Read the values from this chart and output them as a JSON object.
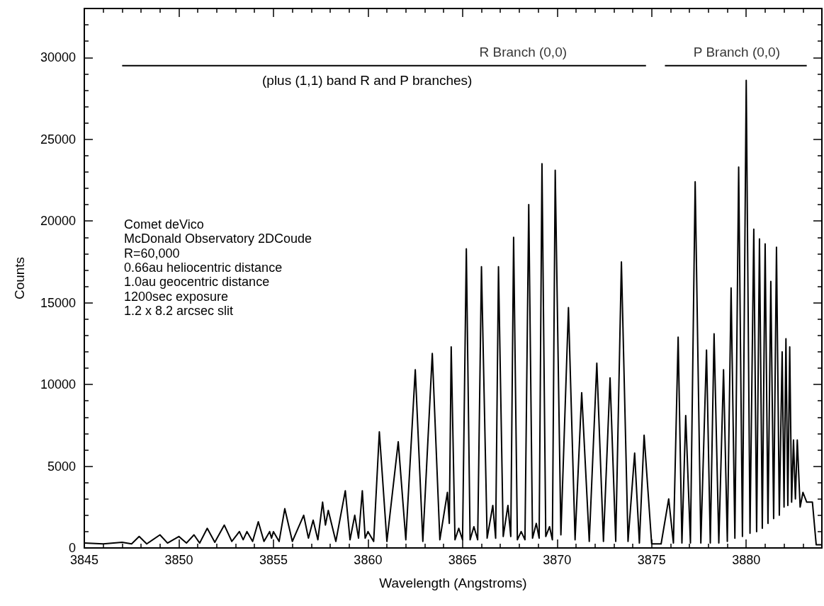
{
  "chart_data": {
    "type": "line",
    "xlabel": "Wavelength (Angstroms)",
    "ylabel": "Counts",
    "xlim": [
      3845,
      3884
    ],
    "xticks": [
      3845,
      3850,
      3855,
      3860,
      3865,
      3870,
      3875,
      3880
    ],
    "ylim": [
      0,
      33000
    ],
    "yticks": [
      0,
      5000,
      10000,
      15000,
      20000,
      25000,
      30000
    ],
    "grid": false,
    "marker": "none",
    "line_style": "solid",
    "annotations": [
      {
        "text": "R Branch (0,0)",
        "x": 3868.2,
        "y": 29500
      },
      {
        "text": "P Branch (0,0)",
        "x": 3879.5,
        "y": 29500
      },
      "(plus (1,1) band R and P branches)",
      "Comet deVico",
      "McDonald Observatory 2DCoude",
      "R=60,000",
      "0.66au heliocentric distance",
      "1.0au geocentric distance",
      "1200sec exposure",
      "1.2 x 8.2 arcsec slit"
    ],
    "series": [
      {
        "color": "#000000",
        "x": [
          3847,
          3874.7
        ],
        "values": [
          29500,
          29500
        ]
      },
      {
        "color": "#000000",
        "x": [
          3875.7,
          3883.2
        ],
        "values": [
          29500,
          29500
        ]
      },
      {
        "color": "#000000",
        "x": [
          3845.0,
          3846.0,
          3847.0,
          3847.5,
          3847.9,
          3848.3,
          3849.0,
          3849.4,
          3850.0,
          3850.4,
          3850.8,
          3851.1,
          3851.5,
          3851.9,
          3852.4,
          3852.8,
          3853.2,
          3853.4,
          3853.6,
          3853.9,
          3854.2,
          3854.5,
          3854.8,
          3854.9,
          3855.0,
          3855.3,
          3855.6,
          3856.0,
          3856.6,
          3856.85,
          3857.1,
          3857.35,
          3857.6,
          3857.75,
          3857.9,
          3858.3,
          3858.8,
          3859.05,
          3859.3,
          3859.5,
          3859.7,
          3859.85,
          3860.0,
          3860.3,
          3860.6,
          3861.0,
          3861.6,
          3862.0,
          3862.5,
          3862.9,
          3863.4,
          3863.8,
          3864.2,
          3864.3,
          3864.4,
          3864.6,
          3864.8,
          3865.0,
          3865.2,
          3865.4,
          3865.6,
          3865.8,
          3866.0,
          3866.3,
          3866.6,
          3866.75,
          3866.9,
          3867.15,
          3867.4,
          3867.55,
          3867.7,
          3867.9,
          3868.1,
          3868.3,
          3868.5,
          3868.7,
          3868.9,
          3869.05,
          3869.2,
          3869.4,
          3869.6,
          3869.75,
          3869.9,
          3870.2,
          3870.6,
          3870.95,
          3871.3,
          3871.7,
          3872.1,
          3872.45,
          3872.8,
          3873.1,
          3873.4,
          3873.75,
          3874.1,
          3874.35,
          3874.6,
          3875.0,
          3875.5,
          3875.9,
          3876.15,
          3876.4,
          3876.6,
          3876.8,
          3877.05,
          3877.3,
          3877.6,
          3877.9,
          3878.1,
          3878.3,
          3878.55,
          3878.8,
          3879.0,
          3879.2,
          3879.4,
          3879.6,
          3879.8,
          3880.0,
          3880.2,
          3880.4,
          3880.55,
          3880.7,
          3880.85,
          3881.0,
          3881.15,
          3881.3,
          3881.45,
          3881.6,
          3881.75,
          3881.9,
          3882.0,
          3882.1,
          3882.2,
          3882.3,
          3882.4,
          3882.5,
          3882.6,
          3882.7,
          3882.85,
          3883.0,
          3883.2,
          3883.5,
          3883.7,
          3884.0
        ],
        "values": [
          300,
          250,
          350,
          250,
          700,
          250,
          800,
          300,
          700,
          300,
          800,
          300,
          1200,
          350,
          1400,
          400,
          1000,
          500,
          1000,
          400,
          1600,
          400,
          1000,
          600,
          1000,
          400,
          2400,
          400,
          2000,
          600,
          1700,
          500,
          2800,
          1400,
          2300,
          400,
          3500,
          500,
          2000,
          600,
          3500,
          600,
          1000,
          400,
          7100,
          400,
          6500,
          500,
          10900,
          400,
          11900,
          500,
          3400,
          1500,
          12300,
          500,
          1200,
          500,
          18300,
          500,
          1300,
          500,
          17200,
          600,
          2600,
          600,
          17200,
          700,
          2600,
          700,
          19000,
          500,
          1000,
          500,
          21000,
          600,
          1500,
          600,
          23500,
          700,
          1300,
          500,
          23100,
          800,
          14700,
          500,
          9500,
          400,
          11300,
          400,
          10400,
          400,
          17500,
          400,
          5800,
          300,
          6900,
          250,
          250,
          3000,
          300,
          12900,
          300,
          8100,
          300,
          22400,
          300,
          12100,
          300,
          13100,
          300,
          10900,
          400,
          15900,
          600,
          23300,
          700,
          28600,
          900,
          19500,
          1000,
          18900,
          1200,
          18600,
          1500,
          16300,
          1800,
          18400,
          2000,
          12000,
          2500,
          12800,
          2600,
          12300,
          2800,
          6600,
          3000,
          6600,
          2500,
          3400,
          2800,
          2800,
          200,
          200
        ]
      }
    ]
  }
}
